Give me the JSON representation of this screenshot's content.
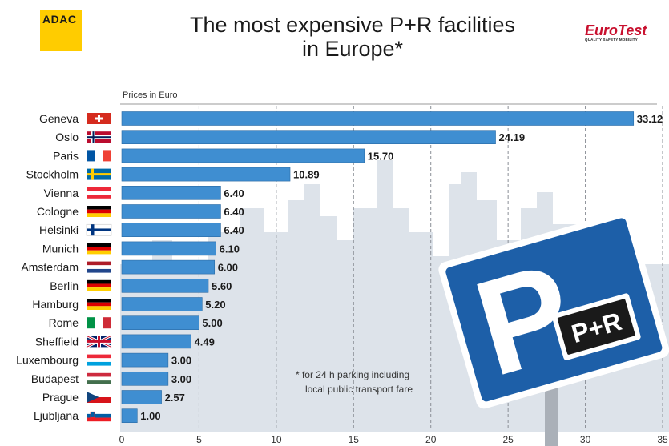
{
  "header": {
    "adac_logo": "ADAC",
    "title_line1": "The most expensive P+R facilities",
    "title_line2": "in Europe*",
    "eurotest_logo": "EuroTest",
    "eurotest_tagline": "QUALITY SAFETY MOBILITY"
  },
  "chart_data": {
    "type": "bar",
    "orientation": "horizontal",
    "subtitle": "Prices in Euro",
    "categories": [
      "Geneva",
      "Oslo",
      "Paris",
      "Stockholm",
      "Vienna",
      "Cologne",
      "Helsinki",
      "Munich",
      "Amsterdam",
      "Berlin",
      "Hamburg",
      "Rome",
      "Sheffield",
      "Luxembourg",
      "Budapest",
      "Prague",
      "Ljubljana"
    ],
    "values": [
      33.12,
      24.19,
      15.7,
      10.89,
      6.4,
      6.4,
      6.4,
      6.1,
      6.0,
      5.6,
      5.2,
      5.0,
      4.49,
      3.0,
      3.0,
      2.57,
      1.0
    ],
    "value_labels": [
      "33.12",
      "24.19",
      "15.70",
      "10.89",
      "6.40",
      "6.40",
      "6.40",
      "6.10",
      "6.00",
      "5.60",
      "5.20",
      "5.00",
      "4.49",
      "3.00",
      "3.00",
      "2.57",
      "1.00"
    ],
    "flags": [
      "ch",
      "no",
      "fr",
      "se",
      "at",
      "de",
      "fi",
      "de",
      "nl",
      "de",
      "de",
      "it",
      "gb",
      "lu",
      "hu",
      "cz",
      "si"
    ],
    "xlim": [
      0,
      35
    ],
    "ticks": [
      "0",
      "5",
      "10",
      "15",
      "20",
      "25",
      "30",
      "35"
    ],
    "grid": true,
    "bar_color": "#3f8ed1",
    "annotation_line1": "* for 24 h parking including",
    "annotation_line2": "local public transport fare",
    "sign_text": "P",
    "sign_sub_text": "P+R"
  }
}
